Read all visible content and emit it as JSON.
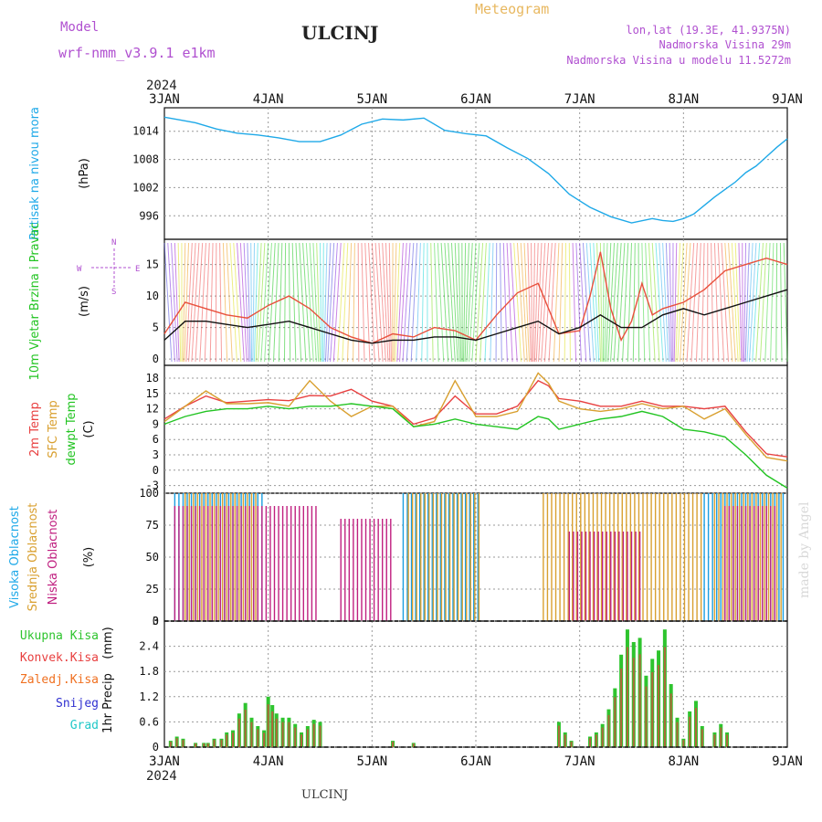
{
  "header": {
    "model_label": "Model",
    "model_name": "wrf-nmm_v3.9.1 e1km",
    "station": "ULCINJ",
    "chart_kind": "Meteogram",
    "lonlat": "lon,lat (19.3E, 41.9375N)",
    "elevation": "Nadmorska Visina 29m",
    "model_elevation": "Nadmorska Visina u modelu 11.5272m",
    "watermark": "made by Angel",
    "footer_station": "ULCINJ"
  },
  "colors": {
    "pressure": "#1fa9e8",
    "wind_speed": "#e8503c",
    "wind_mean": "#111111",
    "t2m": "#e84040",
    "tsfc": "#d9a030",
    "dewpoint": "#22c422",
    "cloud_high": "#1a9ee0",
    "cloud_mid": "#d9a030",
    "cloud_low": "#c02080",
    "precip_total": "#2ec42e",
    "precip_conv": "#e84040",
    "precip_frozen": "#f07020",
    "precip_snow": "#3030d0",
    "precip_hail": "#20c8c8",
    "model_text": "#b050d0",
    "title_text": "#e8b860"
  },
  "chart_data": [
    {
      "type": "line",
      "panel": "pressure",
      "title": "",
      "ylabel": "Pritisak na nivou mora",
      "unit": "(hPa)",
      "ylim": [
        991,
        1019
      ],
      "yticks": [
        996,
        1002,
        1008,
        1014
      ],
      "series": [
        {
          "name": "Pritisak na nivou mora",
          "x": [
            0,
            0.15,
            0.3,
            0.5,
            0.7,
            0.9,
            1.1,
            1.3,
            1.5,
            1.7,
            1.9,
            2.1,
            2.3,
            2.5,
            2.7,
            2.9,
            3.1,
            3.3,
            3.5,
            3.7,
            3.9,
            4.1,
            4.3,
            4.5,
            4.7,
            4.8,
            4.9,
            5.0,
            5.1,
            5.2,
            5.3,
            5.4,
            5.5,
            5.6,
            5.7,
            5.8,
            5.9,
            6.0
          ],
          "y": [
            1017,
            1016.4,
            1015.8,
            1014.5,
            1013.6,
            1013.2,
            1012.6,
            1011.8,
            1011.8,
            1013.2,
            1015.5,
            1016.6,
            1016.4,
            1016.8,
            1014.2,
            1013.5,
            1013.0,
            1010.5,
            1008.2,
            1005.0,
            1000.6,
            997.8,
            995.8,
            994.5,
            995.4,
            995.0,
            994.8,
            995.4,
            996.4,
            998.2,
            1000.0,
            1001.6,
            1003.2,
            1005.2,
            1006.6,
            1008.6,
            1010.6,
            1012.4
          ]
        }
      ]
    },
    {
      "type": "line",
      "panel": "wind",
      "ylabel": "10m Vjetar Brzina i Pravac",
      "unit": "(m/s)",
      "ylim": [
        -1,
        19
      ],
      "yticks": [
        0,
        5,
        10,
        15
      ],
      "compass": {
        "n": "N",
        "e": "E",
        "s": "S",
        "w": "W"
      },
      "series": [
        {
          "name": "brzina",
          "x": [
            0,
            0.2,
            0.4,
            0.6,
            0.8,
            1.0,
            1.2,
            1.4,
            1.6,
            1.8,
            2.0,
            2.2,
            2.4,
            2.6,
            2.8,
            3.0,
            3.2,
            3.4,
            3.6,
            3.8,
            4.0,
            4.1,
            4.2,
            4.3,
            4.4,
            4.5,
            4.6,
            4.7,
            4.8,
            5.0,
            5.2,
            5.4,
            5.6,
            5.8,
            6.0
          ],
          "y": [
            4,
            9,
            8,
            7,
            6.5,
            8.5,
            10,
            8,
            5,
            3.5,
            2.5,
            4,
            3.5,
            5,
            4.5,
            3,
            7,
            10.5,
            12,
            4,
            4.5,
            10,
            17,
            8,
            3,
            6,
            12,
            7,
            8,
            9,
            11,
            14,
            15,
            16,
            15
          ]
        },
        {
          "name": "srednja",
          "x": [
            0,
            0.2,
            0.4,
            0.6,
            0.8,
            1.0,
            1.2,
            1.4,
            1.6,
            1.8,
            2.0,
            2.2,
            2.4,
            2.6,
            2.8,
            3.0,
            3.2,
            3.4,
            3.6,
            3.8,
            4.0,
            4.2,
            4.4,
            4.6,
            4.8,
            5.0,
            5.2,
            5.4,
            5.6,
            5.8,
            6.0
          ],
          "y": [
            3,
            6,
            6,
            5.5,
            5,
            5.5,
            6,
            5,
            4,
            3,
            2.5,
            3,
            3,
            3.5,
            3.5,
            3,
            4,
            5,
            6,
            4,
            5,
            7,
            5,
            5,
            7,
            8,
            7,
            8,
            9,
            10,
            11
          ]
        }
      ]
    },
    {
      "type": "line",
      "panel": "temperature",
      "ylabel": [
        "2m Temp",
        "SFC Temp",
        "dewpt Temp"
      ],
      "unit": "(C)",
      "ylim": [
        -4.5,
        20.5
      ],
      "yticks": [
        -3,
        0,
        3,
        6,
        9,
        12,
        15,
        18
      ],
      "series": [
        {
          "name": "2m Temp",
          "x": [
            0,
            0.2,
            0.4,
            0.6,
            0.8,
            1.0,
            1.2,
            1.4,
            1.6,
            1.8,
            2.0,
            2.2,
            2.4,
            2.6,
            2.8,
            3.0,
            3.2,
            3.4,
            3.6,
            3.7,
            3.8,
            4.0,
            4.2,
            4.4,
            4.6,
            4.8,
            5.0,
            5.2,
            5.4,
            5.6,
            5.8,
            6.0
          ],
          "y": [
            10,
            12.5,
            14.5,
            13.2,
            13.5,
            13.8,
            13.6,
            14.6,
            14.5,
            15.8,
            13.5,
            12.5,
            9,
            10.2,
            14.5,
            11,
            11,
            12.5,
            17.5,
            16.5,
            14,
            13.5,
            12.5,
            12.5,
            13.5,
            12.5,
            12.5,
            12,
            12.5,
            7.5,
            3.2,
            2.6
          ]
        },
        {
          "name": "SFC Temp",
          "x": [
            0,
            0.2,
            0.4,
            0.6,
            0.8,
            1.0,
            1.2,
            1.4,
            1.6,
            1.8,
            2.0,
            2.2,
            2.4,
            2.6,
            2.8,
            3.0,
            3.2,
            3.4,
            3.6,
            3.7,
            3.8,
            4.0,
            4.2,
            4.4,
            4.6,
            4.8,
            5.0,
            5.2,
            5.4,
            5.6,
            5.8,
            6.0
          ],
          "y": [
            9.5,
            12.5,
            15.5,
            13,
            13,
            13.2,
            12.5,
            17.5,
            13.5,
            10.5,
            12.5,
            12.5,
            8.5,
            9.5,
            17.5,
            10.5,
            10.5,
            11.5,
            19,
            17,
            13.5,
            12,
            11.5,
            12,
            13,
            12,
            12.5,
            10,
            12,
            7,
            2.5,
            1.8
          ]
        },
        {
          "name": "dewpt Temp",
          "x": [
            0,
            0.2,
            0.4,
            0.6,
            0.8,
            1.0,
            1.2,
            1.4,
            1.6,
            1.8,
            2.0,
            2.2,
            2.4,
            2.6,
            2.8,
            3.0,
            3.2,
            3.4,
            3.6,
            3.7,
            3.8,
            4.0,
            4.2,
            4.4,
            4.6,
            4.8,
            5.0,
            5.2,
            5.4,
            5.6,
            5.8,
            6.0
          ],
          "y": [
            9,
            10.5,
            11.5,
            12,
            12,
            12.5,
            12,
            12.5,
            12.5,
            13,
            12.5,
            12,
            8.5,
            9,
            10,
            9,
            8.5,
            8,
            10.5,
            10,
            8,
            9,
            10,
            10.5,
            11.5,
            10.5,
            8,
            7.5,
            6.5,
            3,
            -1,
            -3.5
          ]
        }
      ]
    },
    {
      "type": "bar",
      "panel": "clouds",
      "ylabel": [
        "Visoka Oblacnost",
        "Srednja Oblacnost",
        "Niska Oblacnost"
      ],
      "unit": "(%)",
      "ylim": [
        0,
        100
      ],
      "yticks": [
        0,
        25,
        50,
        75,
        100
      ],
      "segments": [
        {
          "name": "Visoka Oblacnost",
          "ranges": [
            [
              0.1,
              0.95,
              100
            ],
            [
              2.3,
              3.05,
              100
            ],
            [
              5.2,
              6.0,
              100
            ]
          ]
        },
        {
          "name": "Srednja Oblacnost",
          "ranges": [
            [
              0.2,
              0.9,
              100
            ],
            [
              2.35,
              3.05,
              100
            ],
            [
              3.65,
              5.2,
              100
            ],
            [
              5.3,
              5.95,
              100
            ]
          ]
        },
        {
          "name": "Niska Oblacnost",
          "ranges": [
            [
              0.1,
              1.5,
              90
            ],
            [
              1.7,
              2.2,
              80
            ],
            [
              3.9,
              4.6,
              70
            ],
            [
              5.4,
              5.9,
              90
            ]
          ]
        }
      ]
    },
    {
      "type": "bar",
      "panel": "precip",
      "ylabel": "1hr Precip",
      "unit": "(mm)",
      "ylim": [
        0,
        3
      ],
      "yticks": [
        0,
        0.6,
        1.2,
        1.8,
        2.4,
        3
      ],
      "legend": [
        "Ukupna Kisa",
        "Konvek.Kisa",
        "Zaledj.Kisa",
        "Snijeg",
        "Grad"
      ],
      "x": [
        0.06,
        0.12,
        0.18,
        0.3,
        0.38,
        0.42,
        0.48,
        0.55,
        0.6,
        0.66,
        0.72,
        0.78,
        0.84,
        0.9,
        0.96,
        1.0,
        1.04,
        1.08,
        1.14,
        1.2,
        1.26,
        1.32,
        1.38,
        1.44,
        1.5,
        2.2,
        2.4,
        3.8,
        3.86,
        3.92,
        4.1,
        4.16,
        4.22,
        4.28,
        4.34,
        4.4,
        4.46,
        4.52,
        4.58,
        4.64,
        4.7,
        4.76,
        4.82,
        4.88,
        4.94,
        5.0,
        5.06,
        5.12,
        5.18,
        5.3,
        5.36,
        5.42
      ],
      "values": [
        0.15,
        0.25,
        0.2,
        0.1,
        0.1,
        0.1,
        0.2,
        0.2,
        0.35,
        0.4,
        0.8,
        1.05,
        0.7,
        0.5,
        0.4,
        1.2,
        1.0,
        0.8,
        0.7,
        0.7,
        0.55,
        0.35,
        0.5,
        0.65,
        0.6,
        0.15,
        0.1,
        0.6,
        0.35,
        0.15,
        0.25,
        0.35,
        0.55,
        0.9,
        1.4,
        2.2,
        2.8,
        2.5,
        2.6,
        1.7,
        2.1,
        2.3,
        2.8,
        1.5,
        0.7,
        0.2,
        0.85,
        1.1,
        0.5,
        0.35,
        0.55,
        0.35
      ]
    }
  ],
  "xaxis": {
    "year": "2024",
    "labels": [
      "3JAN",
      "4JAN",
      "5JAN",
      "6JAN",
      "7JAN",
      "8JAN",
      "9JAN"
    ]
  }
}
